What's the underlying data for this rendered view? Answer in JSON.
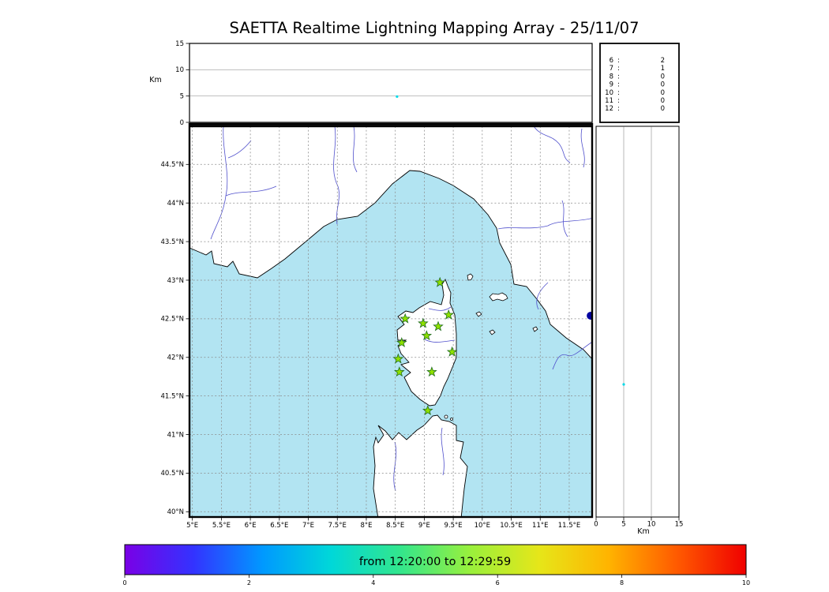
{
  "title": "SAETTA Realtime Lightning Mapping Array - 25/11/07",
  "colors": {
    "sea": "#b2e4f2",
    "land": "#ffffff",
    "river": "#5050cc",
    "grid": "#8a8a8a",
    "station_fill": "#8ee000",
    "station_edge": "#1f6b1f",
    "highlight_red": "#ff5050",
    "stat_text": "#1a1a1a"
  },
  "axes": {
    "km_label": "Km",
    "alt_ticks": [
      {
        "label": "0",
        "value": 0
      },
      {
        "label": "5",
        "value": 5
      },
      {
        "label": "10",
        "value": 10
      },
      {
        "label": "15",
        "value": 15
      }
    ],
    "alt_grid_values": [
      5,
      10
    ],
    "lat_ticks": [
      {
        "label": "44.5°N",
        "value": 44.5
      },
      {
        "label": "44°N",
        "value": 44
      },
      {
        "label": "43.5°N",
        "value": 43.5
      },
      {
        "label": "43°N",
        "value": 43
      },
      {
        "label": "42.5°N",
        "value": 42.5
      },
      {
        "label": "42°N",
        "value": 42
      },
      {
        "label": "41.5°N",
        "value": 41.5
      },
      {
        "label": "41°N",
        "value": 41
      },
      {
        "label": "40.5°N",
        "value": 40.5
      },
      {
        "label": "40°N",
        "value": 40
      }
    ],
    "lon_ticks": [
      {
        "label": "5°E",
        "value": 5
      },
      {
        "label": "5.5°E",
        "value": 5.5
      },
      {
        "label": "6°E",
        "value": 6
      },
      {
        "label": "6.5°E",
        "value": 6.5
      },
      {
        "label": "7°E",
        "value": 7
      },
      {
        "label": "7.5°E",
        "value": 7.5
      },
      {
        "label": "8°E",
        "value": 8
      },
      {
        "label": "8.5°E",
        "value": 8.5
      },
      {
        "label": "9°E",
        "value": 9
      },
      {
        "label": "9.5°E",
        "value": 9.5
      },
      {
        "label": "10°E",
        "value": 10
      },
      {
        "label": "10.5°E",
        "value": 10.5
      },
      {
        "label": "11°E",
        "value": 11
      },
      {
        "label": "11.5°E",
        "value": 11.5
      }
    ]
  },
  "stats": {
    "rows": [
      {
        "bin": "6",
        "sep": ":",
        "count": "2",
        "highlight": true
      },
      {
        "bin": "7",
        "sep": ":",
        "count": "1",
        "highlight": false
      },
      {
        "bin": "8",
        "sep": ":",
        "count": "0",
        "highlight": false
      },
      {
        "bin": "9",
        "sep": ":",
        "count": "0",
        "highlight": false
      },
      {
        "bin": "10",
        "sep": ":",
        "count": "0",
        "highlight": false
      },
      {
        "bin": "11",
        "sep": ":",
        "count": "0",
        "highlight": false
      },
      {
        "bin": "12",
        "sep": ":",
        "count": "0",
        "highlight": false
      }
    ]
  },
  "colorbar": {
    "label": "from 12:20:00 to 12:29:59",
    "ticks": [
      {
        "label": "0",
        "value": 0
      },
      {
        "label": "2",
        "value": 2
      },
      {
        "label": "4",
        "value": 4
      },
      {
        "label": "6",
        "value": 6
      },
      {
        "label": "8",
        "value": 8
      },
      {
        "label": "10",
        "value": 10
      }
    ],
    "gradient": [
      "#7a00e6",
      "#3333ff",
      "#0099ff",
      "#00d8d8",
      "#33e68c",
      "#99f03c",
      "#e6e619",
      "#ffb400",
      "#ff5a00",
      "#f00000"
    ]
  },
  "chart_data": [
    {
      "type": "scatter",
      "name": "altitude-vs-longitude",
      "ylabel": "Km",
      "xlim": [
        4.95,
        11.9
      ],
      "ylim": [
        0,
        15
      ],
      "grid": "horizontal at 5 and 10 km",
      "points": [
        {
          "x": 8.53,
          "y": 4.9,
          "color": "#00d9e8",
          "r": 1.6
        }
      ]
    },
    {
      "type": "scatter",
      "name": "map-longitude-latitude",
      "xlim": [
        4.95,
        11.9
      ],
      "ylim": [
        39.94,
        45.0
      ],
      "grid": "dashed every 0.5 degree",
      "stations": [
        [
          9.27,
          42.97
        ],
        [
          9.42,
          42.55
        ],
        [
          8.67,
          42.5
        ],
        [
          8.98,
          42.44
        ],
        [
          9.24,
          42.4
        ],
        [
          9.04,
          42.28
        ],
        [
          8.61,
          42.19
        ],
        [
          9.48,
          42.07
        ],
        [
          8.55,
          41.98
        ],
        [
          8.57,
          41.81
        ],
        [
          9.13,
          41.81
        ],
        [
          9.06,
          41.31
        ]
      ],
      "points": [
        {
          "x": 11.87,
          "y": 42.54,
          "color": "#0000a0",
          "r": 5
        }
      ]
    },
    {
      "type": "scatter",
      "name": "altitude-vs-latitude",
      "xlabel": "Km",
      "xlim": [
        0,
        15
      ],
      "ylim": [
        39.94,
        45.0
      ],
      "grid": "vertical at 5 and 10 km",
      "points": [
        {
          "x": 5.0,
          "y": 41.65,
          "color": "#00d9e8",
          "r": 1.6
        }
      ]
    },
    {
      "type": "table",
      "name": "altitude-bin-counts",
      "rows": [
        [
          "6",
          "2"
        ],
        [
          "7",
          "1"
        ],
        [
          "8",
          "0"
        ],
        [
          "9",
          "0"
        ],
        [
          "10",
          "0"
        ],
        [
          "11",
          "0"
        ],
        [
          "12",
          "0"
        ]
      ],
      "highlight_row": 0
    }
  ]
}
